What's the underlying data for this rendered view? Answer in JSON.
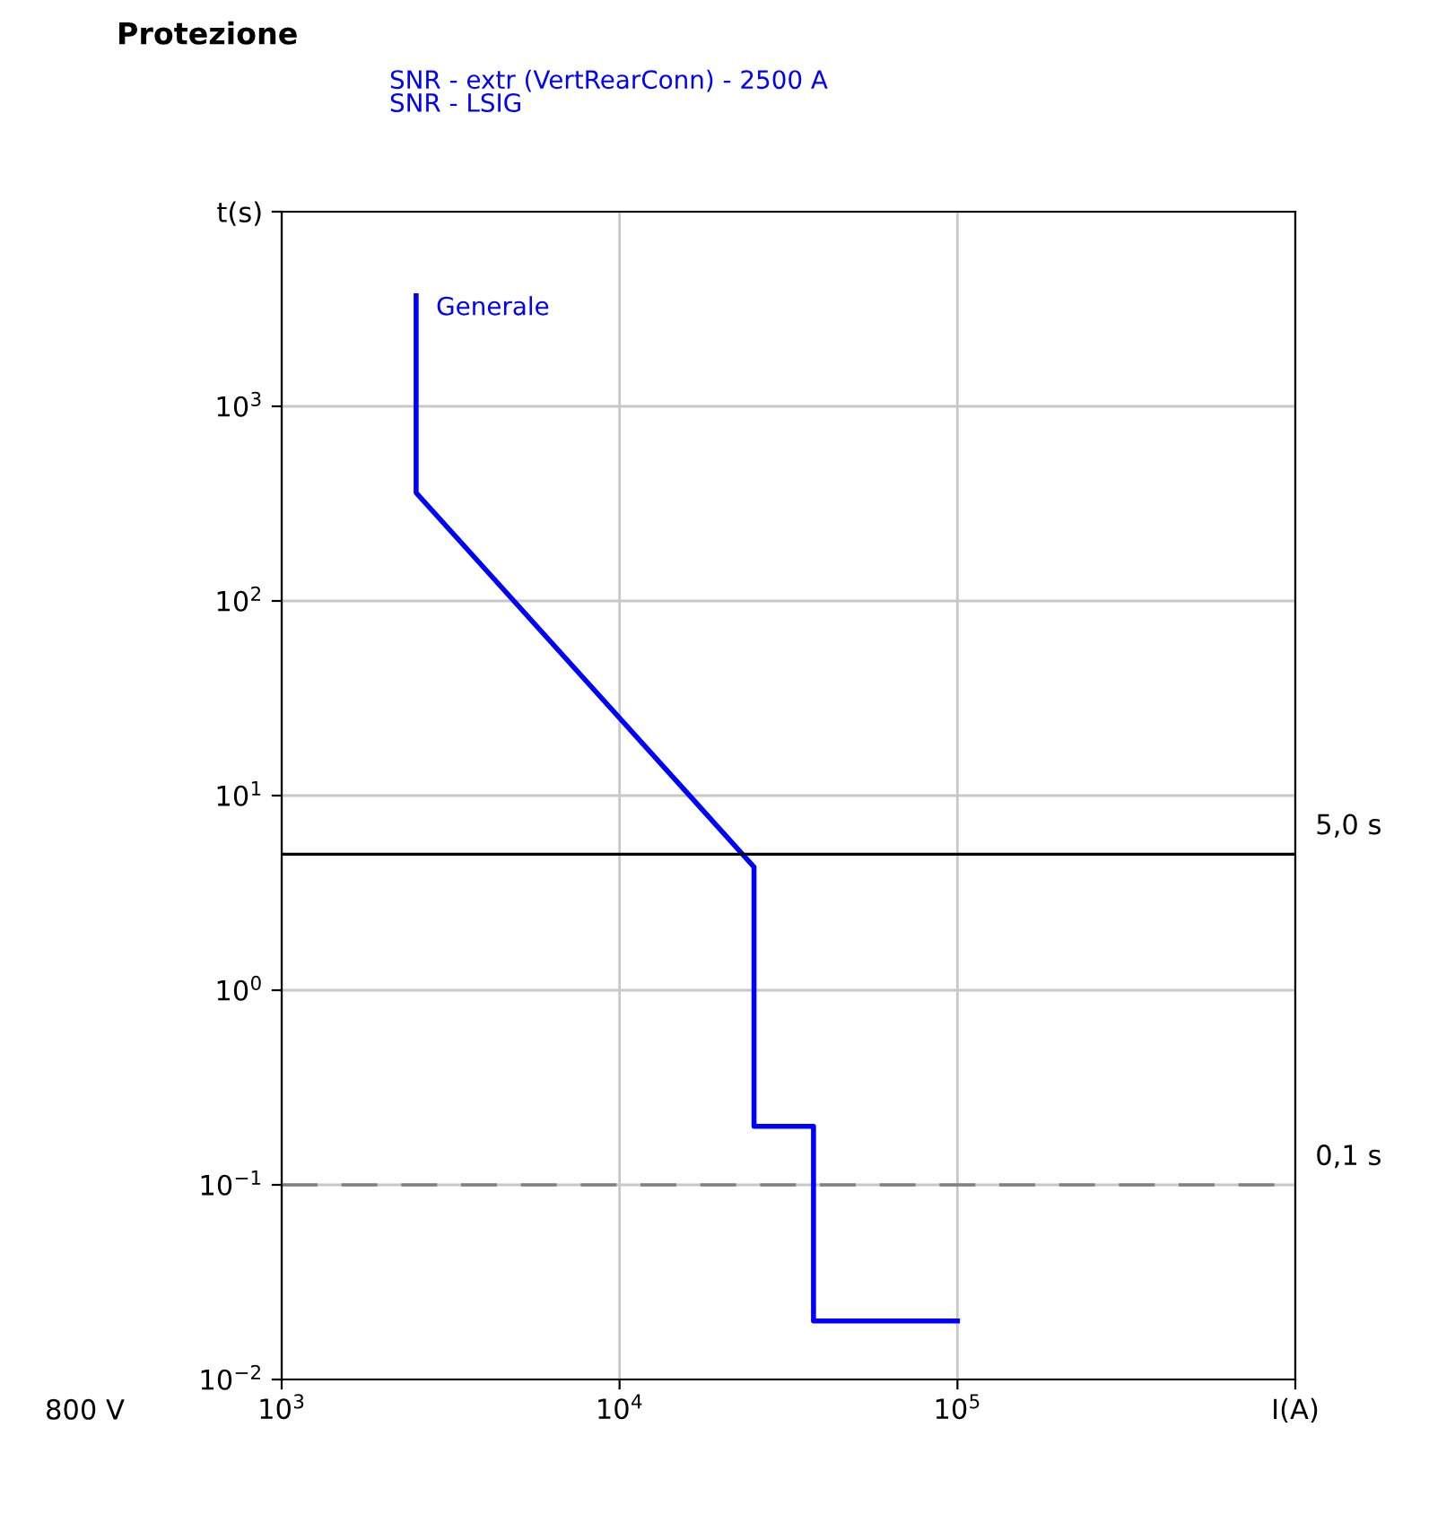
{
  "chart_data": {
    "type": "line",
    "title": "Protezione",
    "subtitle": "SNR - extr (VertRearConn) - 2500 A\nSNR - LSIG",
    "series": [
      {
        "name": "Generale",
        "color": "#0000ff",
        "x": [
          2500,
          2500,
          2500,
          25000,
          25000,
          25000,
          37500,
          37500,
          100000
        ],
        "values": [
          3700,
          360,
          360,
          4.3,
          4.3,
          0.2,
          0.2,
          0.02,
          0.02
        ]
      }
    ],
    "log": "xy",
    "xlim": [
      1000,
      1000000
    ],
    "ylim": [
      0.01,
      10000
    ],
    "xticks": [
      {
        "value": 1000,
        "label": "10$^{3}$"
      },
      {
        "value": 10000,
        "label": "10$^{4}$"
      },
      {
        "value": 100000,
        "label": "10$^{5}$"
      },
      {
        "value": 1000000,
        "label": "I(A)"
      }
    ],
    "yticks": [
      {
        "value": 0.01,
        "label": "10$^{−2}$"
      },
      {
        "value": 0.1,
        "label": "10$^{−1}$"
      },
      {
        "value": 1,
        "label": "10$^{0}$"
      },
      {
        "value": 10,
        "label": "10$^{1}$"
      },
      {
        "value": 100,
        "label": "10$^{2}$"
      },
      {
        "value": 1000,
        "label": "10$^{3}$"
      },
      {
        "value": 10000,
        "label": "t(s)"
      }
    ],
    "grid": true,
    "legend": false,
    "ref_lines": [
      {
        "axis": "y",
        "value": 5,
        "label": "5,0 s",
        "color": "#000000",
        "line_style": "solid"
      },
      {
        "axis": "y",
        "value": 0.1,
        "label": "0,1 s",
        "color": "#808080",
        "line_style": "dashed"
      }
    ],
    "annotations": [
      "800 V"
    ]
  }
}
